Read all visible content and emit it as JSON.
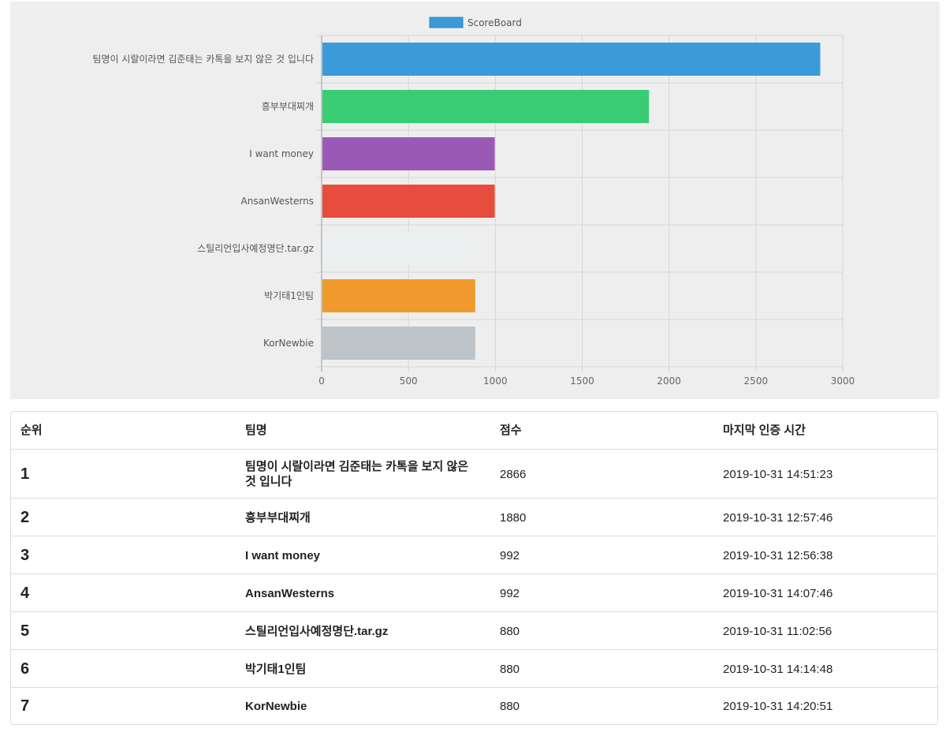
{
  "chart_data": {
    "type": "bar",
    "orientation": "horizontal",
    "legend": {
      "position": "top-center",
      "label": "ScoreBoard"
    },
    "grid": true,
    "xlim": [
      0,
      3000
    ],
    "x_ticks": [
      "0",
      "500",
      "1000",
      "1500",
      "2000",
      "2500",
      "3000"
    ],
    "categories": [
      "팀명이 시랄이라면 김준태는 카톡을 보지 않은 것 입니다",
      "흥부부대찌개",
      "I want money",
      "AnsanWesterns",
      "스틸리언입사예정명단.tar.gz",
      "박기태1인팀",
      "KorNewbie"
    ],
    "series": [
      {
        "name": "ScoreBoard",
        "values": [
          2866,
          1880,
          992,
          992,
          880,
          880,
          880
        ]
      }
    ],
    "bar_colors": [
      "#3b9ad9",
      "#38cd74",
      "#9b59b6",
      "#e74c3c",
      "#ecf0f1",
      "#f09a2d",
      "#bdc3c7"
    ],
    "legend_color": "#3b9ad9"
  },
  "table": {
    "headers": {
      "rank": "순위",
      "team": "팀명",
      "score": "점수",
      "time": "마지막 인증 시간"
    },
    "rows": [
      {
        "rank": "1",
        "team": "팀명이 시랄이라면 김준태는 카톡을 보지 않은 것 입니다",
        "score": "2866",
        "time": "2019-10-31 14:51:23"
      },
      {
        "rank": "2",
        "team": "흥부부대찌개",
        "score": "1880",
        "time": "2019-10-31 12:57:46"
      },
      {
        "rank": "3",
        "team": "I want money",
        "score": "992",
        "time": "2019-10-31 12:56:38"
      },
      {
        "rank": "4",
        "team": "AnsanWesterns",
        "score": "992",
        "time": "2019-10-31 14:07:46"
      },
      {
        "rank": "5",
        "team": "스틸리언입사예정명단.tar.gz",
        "score": "880",
        "time": "2019-10-31 11:02:56"
      },
      {
        "rank": "6",
        "team": "박기태1인팀",
        "score": "880",
        "time": "2019-10-31 14:14:48"
      },
      {
        "rank": "7",
        "team": "KorNewbie",
        "score": "880",
        "time": "2019-10-31 14:20:51"
      }
    ]
  }
}
